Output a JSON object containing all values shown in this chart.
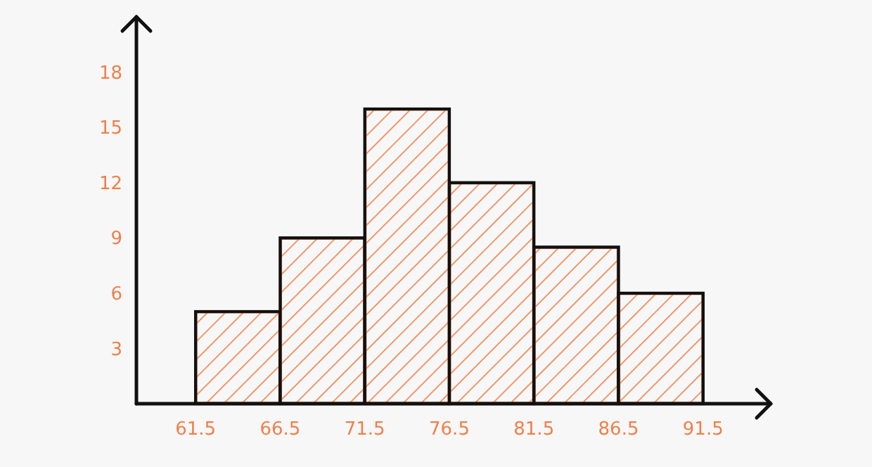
{
  "chart_data": {
    "type": "histogram",
    "bins": [
      61.5,
      66.5,
      71.5,
      76.5,
      81.5,
      86.5,
      91.5
    ],
    "values": [
      5,
      9,
      16,
      12,
      8.5,
      6
    ],
    "color": "#f07f4a",
    "xlim": [
      58,
      95.5
    ],
    "ylim": [
      0,
      21
    ],
    "xticks": [
      61.5,
      66.5,
      71.5,
      76.5,
      81.5,
      86.5,
      91.5
    ],
    "yticks": [
      3,
      6,
      9,
      12,
      15,
      18
    ],
    "grid": false
  }
}
